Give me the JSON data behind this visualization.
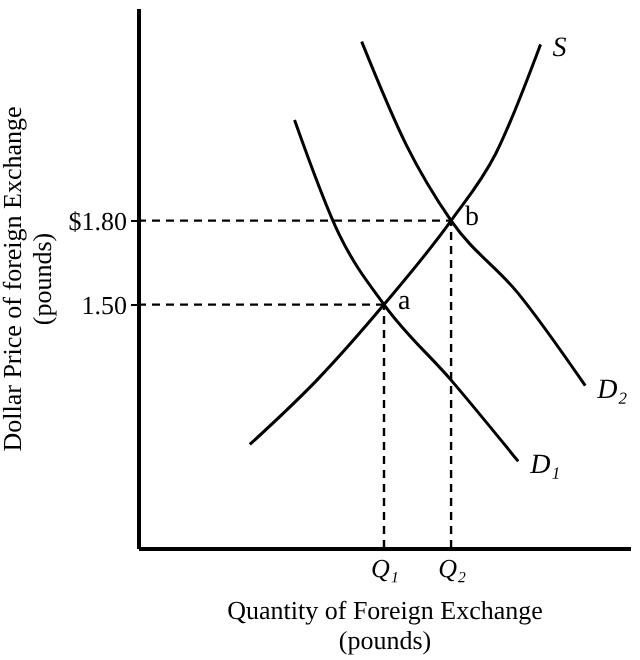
{
  "chart_data": {
    "type": "line",
    "categories": [
      null,
      null,
      null,
      null,
      null,
      null,
      null,
      null,
      null,
      null,
      null,
      "Q₁",
      null,
      null,
      "Q₂",
      null,
      null,
      null,
      null,
      null,
      null,
      null,
      null
    ],
    "series": [
      {
        "name": "S",
        "color": "#000000",
        "values": [
          null,
          null,
          null,
          null,
          null,
          1.0,
          null,
          null,
          1.23,
          null,
          null,
          1.5,
          null,
          null,
          1.8,
          null,
          2.04,
          null,
          2.43,
          null,
          null,
          null,
          null
        ]
      },
      {
        "name": "D₁",
        "color": "#000000",
        "values": [
          null,
          null,
          null,
          null,
          null,
          null,
          null,
          2.16,
          null,
          1.75,
          null,
          1.5,
          null,
          null,
          1.23,
          null,
          null,
          0.94,
          null,
          null,
          null,
          null,
          null
        ]
      },
      {
        "name": "D₂",
        "color": "#000000",
        "values": [
          null,
          null,
          null,
          null,
          null,
          null,
          null,
          null,
          null,
          null,
          2.44,
          null,
          2.07,
          null,
          1.8,
          null,
          null,
          1.54,
          null,
          null,
          1.21,
          null,
          null
        ]
      }
    ],
    "ylim": [
      0.63,
      2.56
    ],
    "yticks": [
      {
        "value": 1.5,
        "label": "1.50"
      },
      {
        "value": 1.8,
        "label": "$1.80"
      }
    ],
    "xlabel": "Quantity of Foreign Exchange\n(pounds)",
    "ylabel": "Dollar Price of foreign Exchange\n(pounds)",
    "ref_lines": [
      {
        "axis": "y",
        "value": 1.5,
        "line_style": "dashed"
      },
      {
        "axis": "y",
        "value": 1.8,
        "line_style": "dashed"
      },
      {
        "axis": "x",
        "value": "Q₁",
        "line_style": "dashed"
      },
      {
        "axis": "x",
        "value": "Q₂",
        "line_style": "dashed"
      }
    ],
    "annotations": [
      {
        "text": "a",
        "x": "Q₁",
        "y": 1.5
      },
      {
        "text": "b",
        "x": "Q₂",
        "y": 1.8
      }
    ],
    "marker": "none",
    "line_style": "solid"
  }
}
